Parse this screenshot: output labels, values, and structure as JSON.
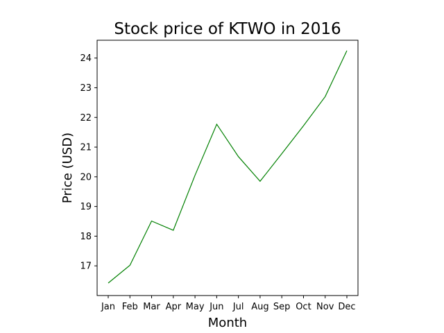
{
  "chart_data": {
    "type": "line",
    "title": "Stock price of KTWO in 2016",
    "xlabel": "Month",
    "ylabel": "Price (USD)",
    "categories": [
      "Jan",
      "Feb",
      "Mar",
      "Apr",
      "May",
      "Jun",
      "Jul",
      "Aug",
      "Sep",
      "Oct",
      "Nov",
      "Dec"
    ],
    "series": [
      {
        "color": "#008000",
        "values": [
          16.42,
          17.02,
          18.51,
          18.2,
          20.05,
          21.77,
          20.68,
          19.85,
          20.78,
          21.72,
          22.7,
          24.25
        ]
      }
    ],
    "ylim": [
      16.0,
      24.6
    ],
    "yticks": [
      17,
      18,
      19,
      20,
      21,
      22,
      23,
      24
    ],
    "grid": false,
    "legend": "none"
  }
}
